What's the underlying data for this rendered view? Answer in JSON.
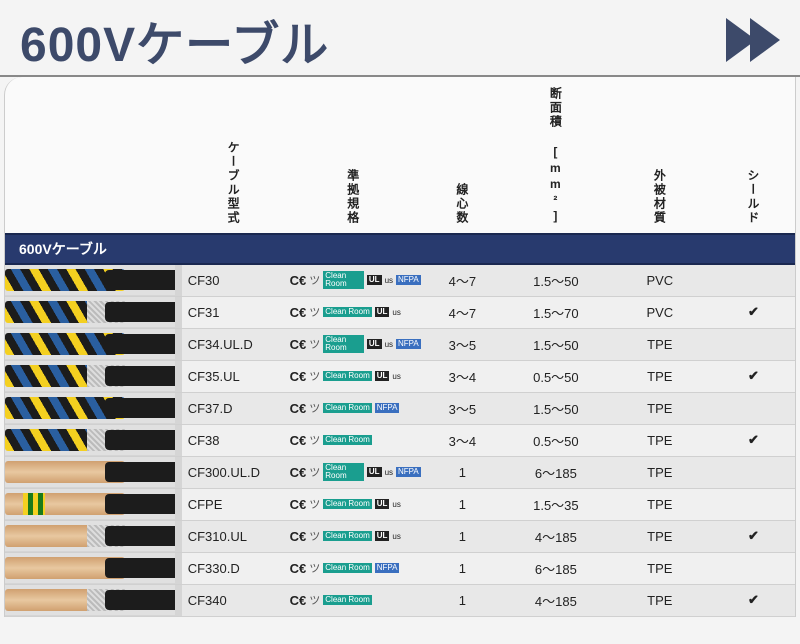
{
  "title": "600Vケーブル",
  "section_label": "600Vケーブル",
  "columns": {
    "model": "ケーブル型式",
    "std": "準拠規格",
    "cores": "線心数",
    "area": "断面積 [mm²]",
    "jacket": "外被材質",
    "shield": "シールド"
  },
  "cert_labels": {
    "ce": "CE",
    "eac": "ツ",
    "cr": "Clean Room",
    "ul": "UL",
    "ulus": "us",
    "nfpa": "NFPA"
  },
  "rows": [
    {
      "model": "CF30",
      "std": [
        "ce",
        "eac",
        "cr",
        "ul",
        "ulus",
        "nfpa"
      ],
      "cores": "4〜7",
      "area": "1.5〜50",
      "jacket": "PVC",
      "shield": "",
      "thumb": "twist"
    },
    {
      "model": "CF31",
      "std": [
        "ce",
        "eac",
        "cr",
        "ul",
        "ulus"
      ],
      "cores": "4〜7",
      "area": "1.5〜70",
      "jacket": "PVC",
      "shield": "✔",
      "thumb": "twist shielded"
    },
    {
      "model": "CF34.UL.D",
      "std": [
        "ce",
        "eac",
        "cr",
        "ul",
        "ulus",
        "nfpa"
      ],
      "cores": "3〜5",
      "area": "1.5〜50",
      "jacket": "TPE",
      "shield": "",
      "thumb": "twist"
    },
    {
      "model": "CF35.UL",
      "std": [
        "ce",
        "eac",
        "cr",
        "ul",
        "ulus"
      ],
      "cores": "3〜4",
      "area": "0.5〜50",
      "jacket": "TPE",
      "shield": "✔",
      "thumb": "twist shielded"
    },
    {
      "model": "CF37.D",
      "std": [
        "ce",
        "eac",
        "cr",
        "nfpa"
      ],
      "cores": "3〜5",
      "area": "1.5〜50",
      "jacket": "TPE",
      "shield": "",
      "thumb": "twist"
    },
    {
      "model": "CF38",
      "std": [
        "ce",
        "eac",
        "cr"
      ],
      "cores": "3〜4",
      "area": "0.5〜50",
      "jacket": "TPE",
      "shield": "✔",
      "thumb": "twist shielded"
    },
    {
      "model": "CF300.UL.D",
      "std": [
        "ce",
        "eac",
        "cr",
        "ul",
        "ulus",
        "nfpa"
      ],
      "cores": "1",
      "area": "6〜185",
      "jacket": "TPE",
      "shield": "",
      "thumb": "copper"
    },
    {
      "model": "CFPE",
      "std": [
        "ce",
        "eac",
        "cr",
        "ul",
        "ulus"
      ],
      "cores": "1",
      "area": "1.5〜35",
      "jacket": "TPE",
      "shield": "",
      "thumb": "pe"
    },
    {
      "model": "CF310.UL",
      "std": [
        "ce",
        "eac",
        "cr",
        "ul",
        "ulus"
      ],
      "cores": "1",
      "area": "4〜185",
      "jacket": "TPE",
      "shield": "✔",
      "thumb": "copper shielded"
    },
    {
      "model": "CF330.D",
      "std": [
        "ce",
        "eac",
        "cr",
        "nfpa"
      ],
      "cores": "1",
      "area": "6〜185",
      "jacket": "TPE",
      "shield": "",
      "thumb": "copper"
    },
    {
      "model": "CF340",
      "std": [
        "ce",
        "eac",
        "cr"
      ],
      "cores": "1",
      "area": "4〜185",
      "jacket": "TPE",
      "shield": "✔",
      "thumb": "copper shielded"
    }
  ],
  "colors": {
    "accent": "#3d4a6a",
    "banner": "#283a6e",
    "cr_icon": "#1a9e8f",
    "nfpa_icon": "#3a6fbf"
  }
}
